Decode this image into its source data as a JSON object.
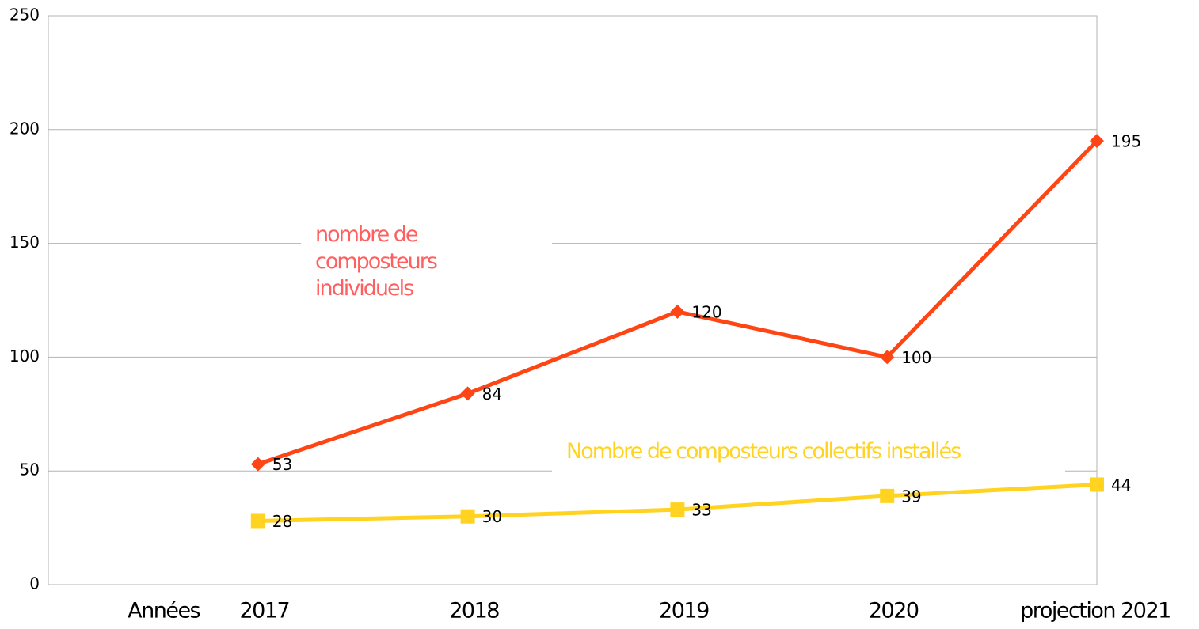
{
  "chart_data": {
    "type": "line",
    "categories": [
      "Années",
      "2017",
      "2018",
      "2019",
      "2020",
      "projection 2021"
    ],
    "series": [
      {
        "name": "nombre de composteurs individuels",
        "color": "#ff4514",
        "text_color": "#ff5f5f",
        "marker": "diamond",
        "values": [
          null,
          53,
          84,
          120,
          100,
          195
        ]
      },
      {
        "name": "Nombre de composteurs collectifs installés",
        "color": "#ffd320",
        "text_color": "#ffd320",
        "marker": "square",
        "values": [
          null,
          28,
          30,
          33,
          39,
          44
        ]
      }
    ],
    "ylim": [
      0,
      250
    ],
    "yticks": [
      0,
      50,
      100,
      150,
      200,
      250
    ],
    "grid": true
  }
}
